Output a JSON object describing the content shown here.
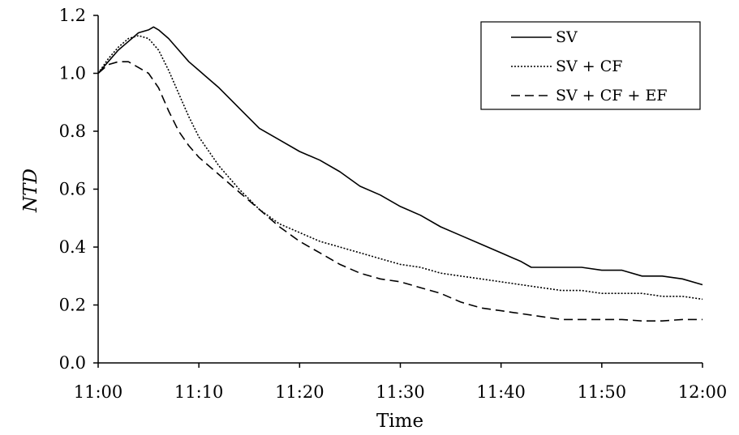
{
  "chart_data": {
    "type": "line",
    "title": "",
    "xlabel": "Time",
    "ylabel": "NTD",
    "x_unit": "minutes after 11:00",
    "xlim": [
      0,
      60
    ],
    "ylim": [
      0,
      1.2
    ],
    "x_ticks": [
      0,
      10,
      20,
      30,
      40,
      50,
      60
    ],
    "x_tick_labels": [
      "11:00",
      "11:10",
      "11:20",
      "11:30",
      "11:40",
      "11:50",
      "12:00"
    ],
    "y_ticks": [
      0,
      0.2,
      0.4,
      0.6,
      0.8,
      1.0,
      1.2
    ],
    "y_tick_labels": [
      "0.0",
      "0.2",
      "0.4",
      "0.6",
      "0.8",
      "1.0",
      "1.2"
    ],
    "grid": false,
    "legend_position": "top-right",
    "series": [
      {
        "name": "SV",
        "style": "solid",
        "x": [
          0,
          1,
          2,
          3,
          4,
          5,
          5.5,
          6,
          7,
          8,
          9,
          10,
          12,
          14,
          16,
          18,
          20,
          22,
          24,
          26,
          28,
          30,
          32,
          34,
          36,
          38,
          40,
          42,
          43,
          44,
          46,
          48,
          50,
          52,
          54,
          56,
          58,
          60
        ],
        "values": [
          1.0,
          1.04,
          1.08,
          1.11,
          1.14,
          1.15,
          1.16,
          1.15,
          1.12,
          1.08,
          1.04,
          1.01,
          0.95,
          0.88,
          0.81,
          0.77,
          0.73,
          0.7,
          0.66,
          0.61,
          0.58,
          0.54,
          0.51,
          0.47,
          0.44,
          0.41,
          0.38,
          0.35,
          0.33,
          0.33,
          0.33,
          0.33,
          0.32,
          0.32,
          0.3,
          0.3,
          0.29,
          0.27
        ]
      },
      {
        "name": "SV + CF",
        "style": "dotted",
        "x": [
          0,
          1,
          2,
          3,
          4,
          5,
          6,
          7,
          8,
          9,
          10,
          12,
          14,
          16,
          18,
          20,
          22,
          24,
          26,
          28,
          30,
          32,
          34,
          36,
          38,
          40,
          42,
          44,
          46,
          48,
          50,
          52,
          54,
          56,
          58,
          60
        ],
        "values": [
          1.0,
          1.05,
          1.09,
          1.12,
          1.13,
          1.12,
          1.08,
          1.01,
          0.93,
          0.85,
          0.78,
          0.68,
          0.6,
          0.53,
          0.48,
          0.45,
          0.42,
          0.4,
          0.38,
          0.36,
          0.34,
          0.33,
          0.31,
          0.3,
          0.29,
          0.28,
          0.27,
          0.26,
          0.25,
          0.25,
          0.24,
          0.24,
          0.24,
          0.23,
          0.23,
          0.22
        ]
      },
      {
        "name": "SV + CF + EF",
        "style": "dashed",
        "x": [
          0,
          1,
          2,
          3,
          4,
          5,
          6,
          7,
          8,
          9,
          10,
          12,
          14,
          16,
          18,
          20,
          22,
          24,
          26,
          28,
          30,
          32,
          34,
          36,
          38,
          40,
          42,
          44,
          46,
          48,
          50,
          52,
          54,
          56,
          58,
          60
        ],
        "values": [
          1.0,
          1.03,
          1.04,
          1.04,
          1.02,
          1.0,
          0.95,
          0.87,
          0.8,
          0.75,
          0.71,
          0.65,
          0.59,
          0.53,
          0.47,
          0.42,
          0.38,
          0.34,
          0.31,
          0.29,
          0.28,
          0.26,
          0.24,
          0.21,
          0.19,
          0.18,
          0.17,
          0.16,
          0.15,
          0.15,
          0.15,
          0.15,
          0.145,
          0.145,
          0.15,
          0.15
        ]
      }
    ]
  }
}
